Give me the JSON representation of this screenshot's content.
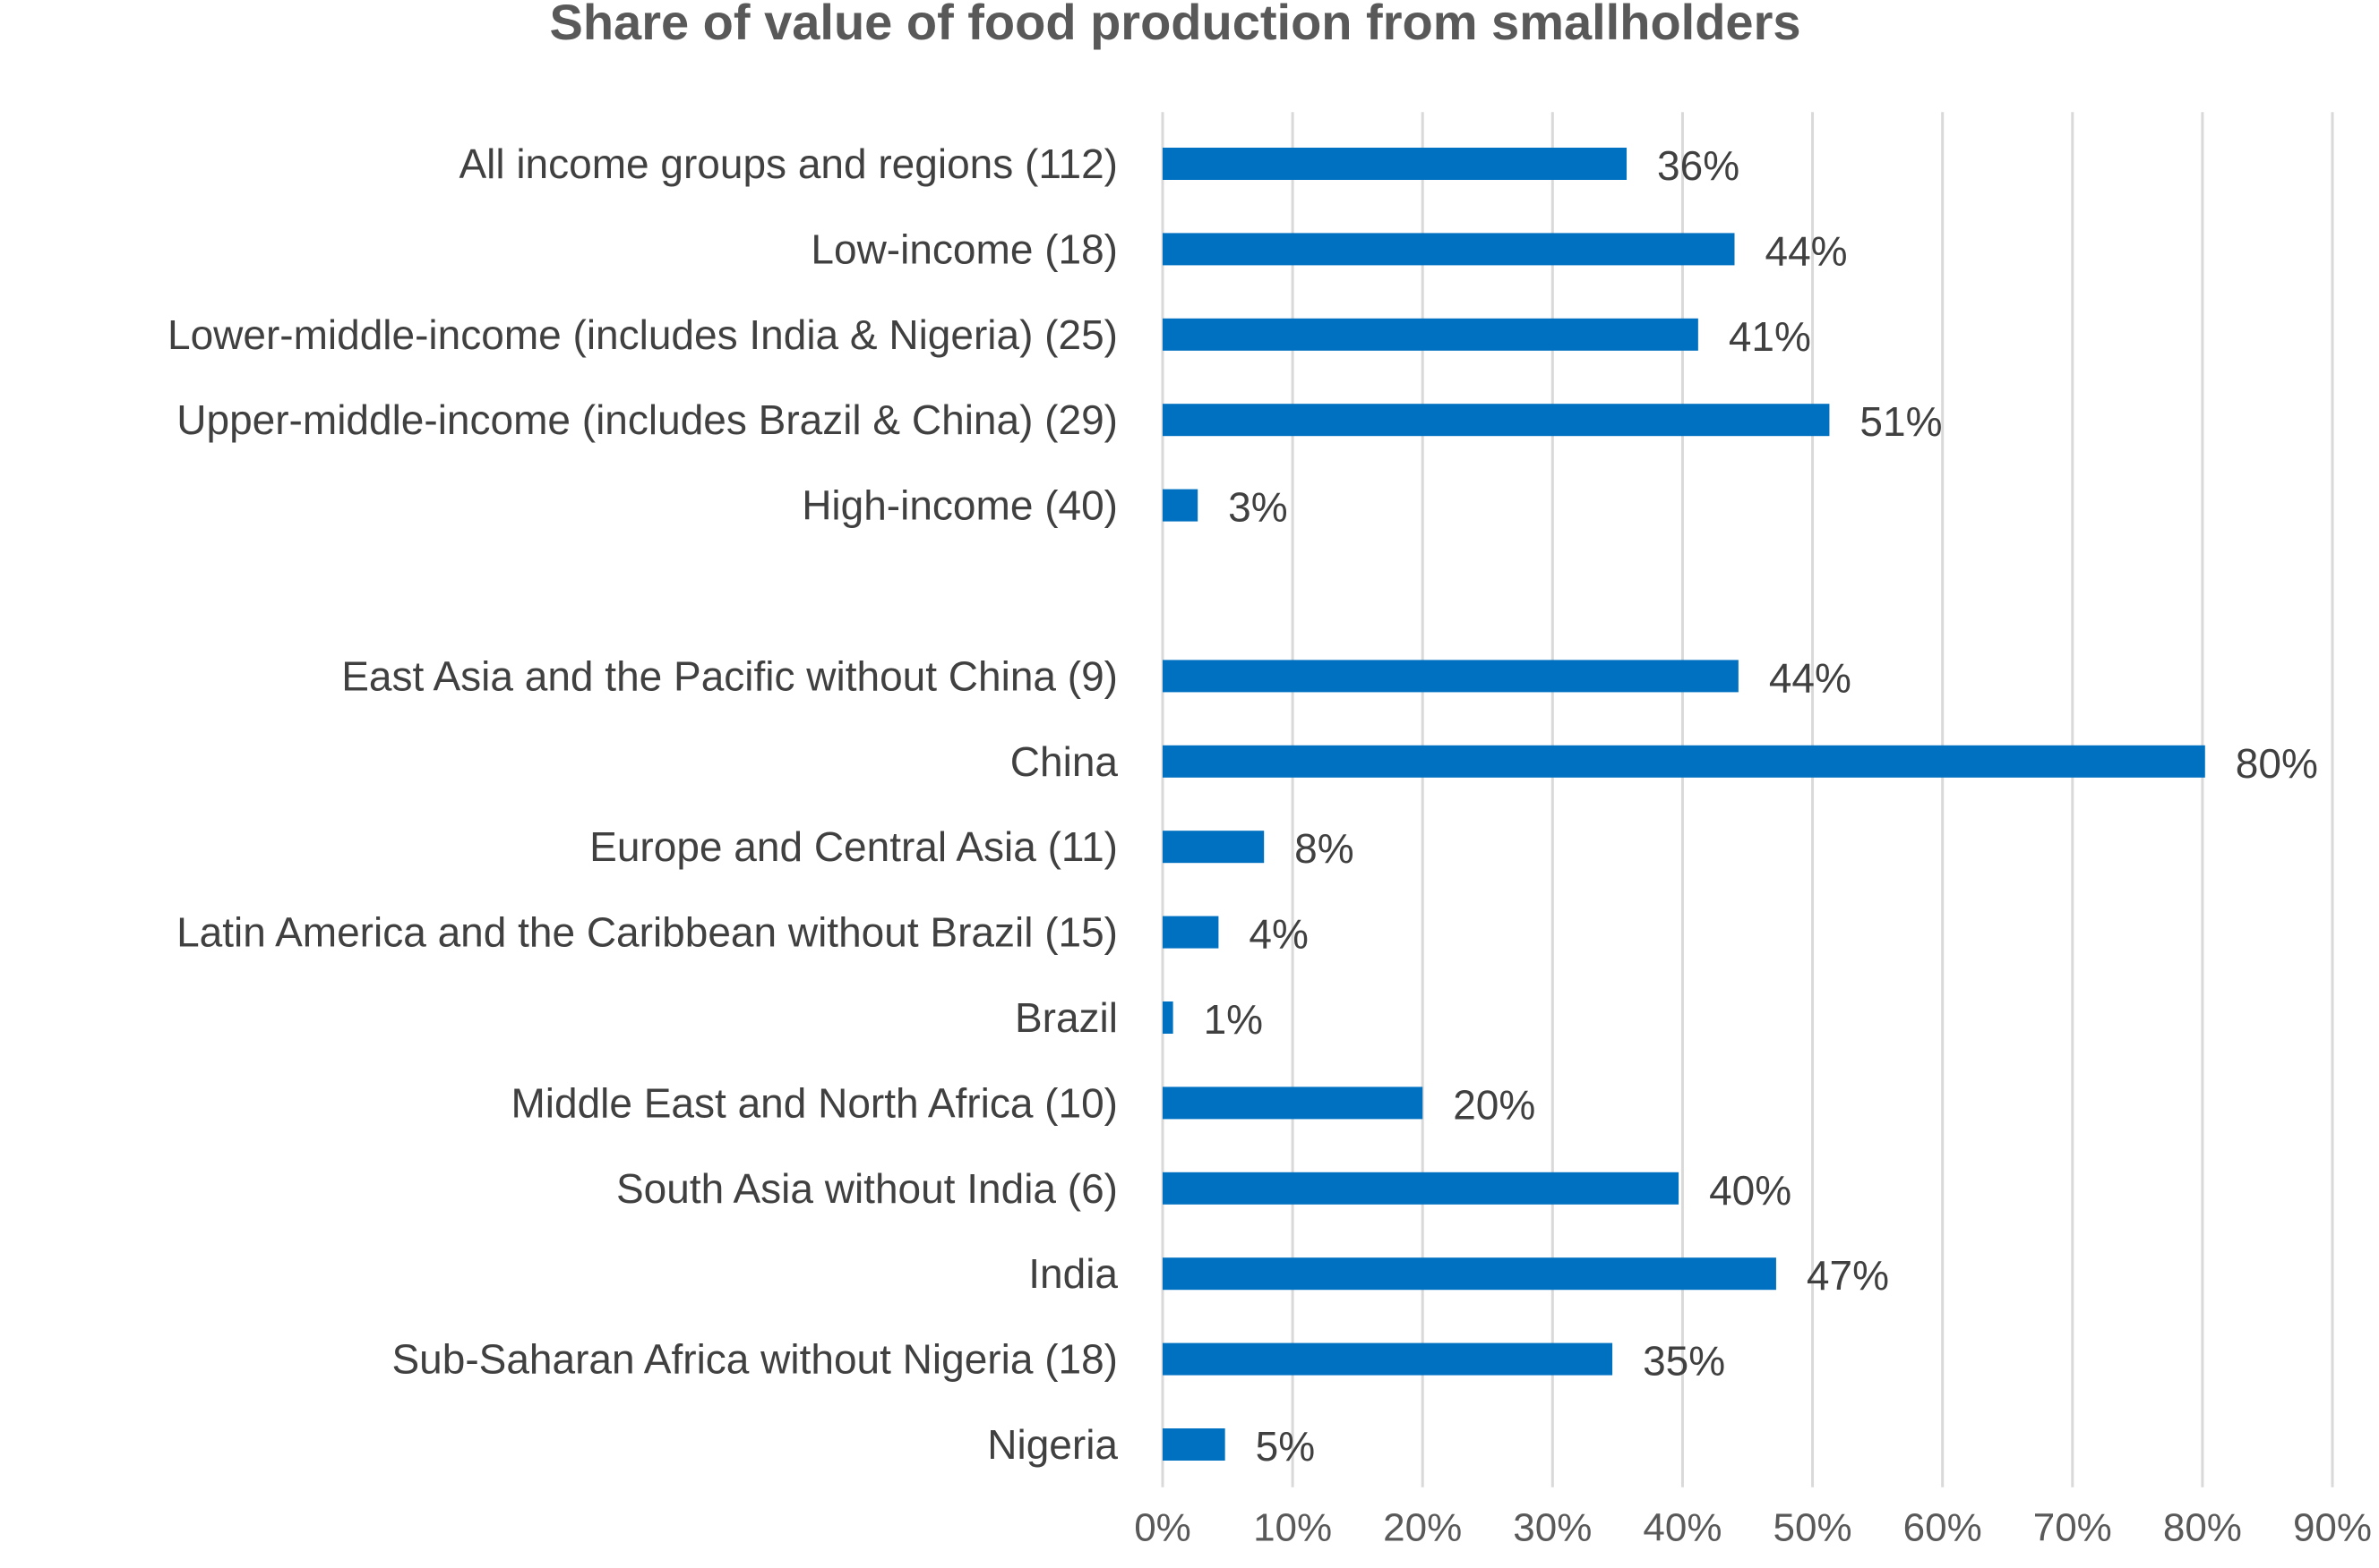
{
  "chart_data": {
    "type": "bar",
    "orientation": "horizontal",
    "title": "Share of value of food production from smallholders",
    "xlabel": "",
    "ylabel": "",
    "xlim": [
      0,
      0.9
    ],
    "x_ticks": [
      0,
      0.1,
      0.2,
      0.3,
      0.4,
      0.5,
      0.6,
      0.7,
      0.8,
      0.9
    ],
    "x_tick_labels": [
      "0%",
      "10%",
      "20%",
      "30%",
      "40%",
      "50%",
      "60%",
      "70%",
      "80%",
      "90%"
    ],
    "grid": "vertical",
    "legend": "none",
    "categories": [
      "All income groups  and regions (112)",
      "Low-income (18)",
      "Lower-middle-income (includes India & Nigeria) (25)",
      "Upper-middle-income (includes Brazil & China) (29)",
      "High-income (40)",
      "",
      "East Asia and the Pacific without China (9)",
      "China",
      "Europe and Central Asia (11)",
      "Latin America and the Caribbean without Brazil (15)",
      "Brazil",
      "Middle East and North Africa (10)",
      "South Asia without India (6)",
      "India",
      "Sub-Saharan Africa without Nigeria  (18)",
      "Nigeria"
    ],
    "series": [
      {
        "values": [
          0.357,
          0.44,
          0.412,
          0.513,
          0.027,
          null,
          0.443,
          0.802,
          0.078,
          0.043,
          0.008,
          0.2,
          0.397,
          0.472,
          0.346,
          0.048
        ],
        "data_labels": [
          "36%",
          "44%",
          "41%",
          "51%",
          "3%",
          "",
          "44%",
          "80%",
          "8%",
          "4%",
          "1%",
          "20%",
          "40%",
          "47%",
          "35%",
          "5%"
        ],
        "color": "#0070C0"
      }
    ],
    "colors": {
      "bar": "#0070C0",
      "grid": "#D9D9D9",
      "title": "#595959",
      "label": "#404040"
    }
  }
}
